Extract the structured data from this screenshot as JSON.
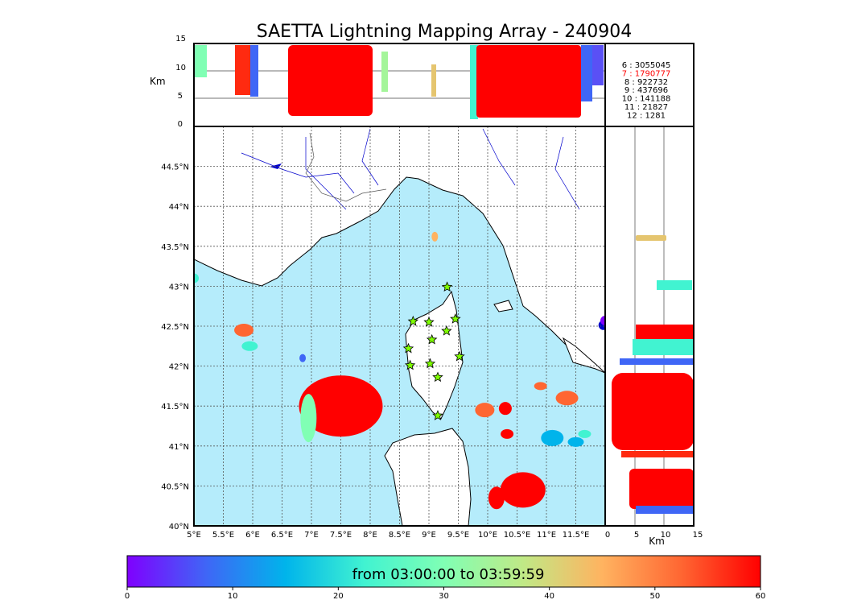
{
  "title": "SAETTA Lightning Mapping Array - 240904",
  "altitude_axis": {
    "unit_label": "Km",
    "ticks": [
      "0",
      "5",
      "10",
      "15"
    ]
  },
  "map": {
    "lon_ticks": [
      "5°E",
      "5.5°E",
      "6°E",
      "6.5°E",
      "7°E",
      "7.5°E",
      "8°E",
      "8.5°E",
      "9°E",
      "9.5°E",
      "10°E",
      "10.5°E",
      "11°E",
      "11.5°E"
    ],
    "lat_ticks": [
      "40°N",
      "40.5°N",
      "41°N",
      "41.5°N",
      "42°N",
      "42.5°N",
      "43°N",
      "43.5°N",
      "44°N",
      "44.5°N"
    ],
    "lon_range": [
      5,
      12
    ],
    "lat_range": [
      40,
      45
    ],
    "sea_color": "#b5ecfb",
    "land_color": "#ffffff",
    "stations": [
      [
        8.73,
        42.56
      ],
      [
        9.0,
        42.55
      ],
      [
        9.31,
        42.99
      ],
      [
        9.45,
        42.59
      ],
      [
        9.05,
        42.33
      ],
      [
        9.3,
        42.44
      ],
      [
        8.65,
        42.22
      ],
      [
        8.68,
        42.01
      ],
      [
        9.02,
        42.03
      ],
      [
        9.52,
        42.12
      ],
      [
        9.15,
        41.86
      ],
      [
        9.15,
        41.38
      ]
    ]
  },
  "legend": {
    "entries": [
      {
        "label": "6  :  3055045",
        "color": "#000000"
      },
      {
        "label": "7  :  1790777",
        "color": "#ff0000"
      },
      {
        "label": "8  :    922732",
        "color": "#000000"
      },
      {
        "label": "9  :    437696",
        "color": "#000000"
      },
      {
        "label": "10  :   141188",
        "color": "#000000"
      },
      {
        "label": "11  :     21827",
        "color": "#000000"
      },
      {
        "label": "12  :      1281",
        "color": "#000000"
      }
    ]
  },
  "colorbar": {
    "label": "from 03:00:00 to 03:59:59",
    "ticks": [
      "0",
      "10",
      "20",
      "30",
      "40",
      "50",
      "60"
    ],
    "range": [
      0,
      60
    ],
    "colors": [
      "#7f00ff",
      "#3f66f6",
      "#00b4eb",
      "#41f3d1",
      "#80ffb4",
      "#c0e986",
      "#ffb360",
      "#ff6632",
      "#ff0000"
    ]
  },
  "chart_data": {
    "type": "scatter",
    "title": "SAETTA Lightning Mapping Array - 240904",
    "xlabel": "",
    "ylabel": "",
    "xlim": [
      5,
      12
    ],
    "ylim": [
      40,
      45
    ],
    "color_scale": "time (minutes)",
    "clusters": [
      {
        "lon": 5.0,
        "lat": 43.1,
        "time_min": 20
      },
      {
        "lon": 5.85,
        "lat": 42.45,
        "time_min": 55
      },
      {
        "lon": 5.95,
        "lat": 42.25,
        "time_min": 25
      },
      {
        "lon": 7.5,
        "lat": 41.5,
        "time_min": 58
      },
      {
        "lon": 6.95,
        "lat": 41.35,
        "time_min": 28
      },
      {
        "lon": 9.1,
        "lat": 43.62,
        "time_min": 42
      },
      {
        "lon": 9.95,
        "lat": 41.45,
        "time_min": 56
      },
      {
        "lon": 10.3,
        "lat": 41.47,
        "time_min": 57
      },
      {
        "lon": 10.33,
        "lat": 41.15,
        "time_min": 58
      },
      {
        "lon": 10.6,
        "lat": 40.45,
        "time_min": 59
      },
      {
        "lon": 10.15,
        "lat": 40.35,
        "time_min": 59
      },
      {
        "lon": 10.9,
        "lat": 41.75,
        "time_min": 50
      },
      {
        "lon": 11.35,
        "lat": 41.6,
        "time_min": 52
      },
      {
        "lon": 11.1,
        "lat": 41.1,
        "time_min": 18
      },
      {
        "lon": 11.5,
        "lat": 41.05,
        "time_min": 14
      },
      {
        "lon": 11.65,
        "lat": 41.15,
        "time_min": 20
      },
      {
        "lon": 6.85,
        "lat": 42.1,
        "time_min": 8
      },
      {
        "lon": 12.0,
        "lat": 42.57,
        "time_min": 2
      }
    ]
  }
}
